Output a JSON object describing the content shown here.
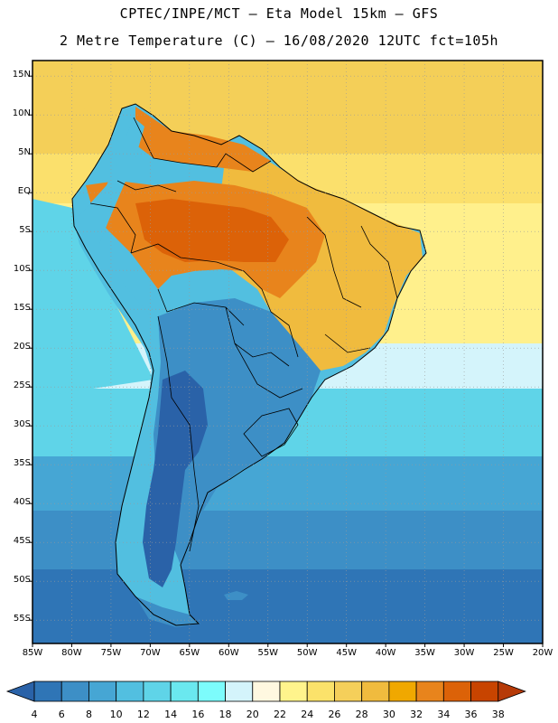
{
  "title": {
    "line1": "CPTEC/INPE/MCT –  Eta Model 15km – GFS",
    "line2": "2 Metre Temperature (C) – 16/08/2020 12UTC fct=105h"
  },
  "map": {
    "region": "South America",
    "lon_range": [
      -85,
      -20
    ],
    "lat_range": [
      -58,
      17
    ],
    "lat_labels": [
      {
        "lat": 15,
        "label": "15N"
      },
      {
        "lat": 10,
        "label": "10N"
      },
      {
        "lat": 5,
        "label": "5N"
      },
      {
        "lat": 0,
        "label": "EQ"
      },
      {
        "lat": -5,
        "label": "5S"
      },
      {
        "lat": -10,
        "label": "10S"
      },
      {
        "lat": -15,
        "label": "15S"
      },
      {
        "lat": -20,
        "label": "20S"
      },
      {
        "lat": -25,
        "label": "25S"
      },
      {
        "lat": -30,
        "label": "30S"
      },
      {
        "lat": -35,
        "label": "35S"
      },
      {
        "lat": -40,
        "label": "40S"
      },
      {
        "lat": -45,
        "label": "45S"
      },
      {
        "lat": -50,
        "label": "50S"
      },
      {
        "lat": -55,
        "label": "55S"
      }
    ],
    "lon_labels": [
      {
        "lon": -85,
        "label": "85W"
      },
      {
        "lon": -80,
        "label": "80W"
      },
      {
        "lon": -75,
        "label": "75W"
      },
      {
        "lon": -70,
        "label": "70W"
      },
      {
        "lon": -65,
        "label": "65W"
      },
      {
        "lon": -60,
        "label": "60W"
      },
      {
        "lon": -55,
        "label": "55W"
      },
      {
        "lon": -50,
        "label": "50W"
      },
      {
        "lon": -45,
        "label": "45W"
      },
      {
        "lon": -40,
        "label": "40W"
      },
      {
        "lon": -35,
        "label": "35W"
      },
      {
        "lon": -30,
        "label": "30W"
      },
      {
        "lon": -25,
        "label": "25W"
      },
      {
        "lon": -20,
        "label": "20W"
      }
    ]
  },
  "colorbar": {
    "levels": [
      "4",
      "6",
      "8",
      "10",
      "12",
      "14",
      "16",
      "18",
      "20",
      "22",
      "24",
      "26",
      "28",
      "30",
      "32",
      "34",
      "36",
      "38"
    ],
    "colors": [
      "#2a62a8",
      "#2f75b6",
      "#3d8fc6",
      "#46a6d4",
      "#52bfe0",
      "#5fd4e8",
      "#6ae8ef",
      "#7cfcfc",
      "#d4f4fb",
      "#fff8e0",
      "#fff48c",
      "#fbe26a",
      "#f5cf5a",
      "#f0bb3e",
      "#f0a800",
      "#e8841c",
      "#dc6208",
      "#c84400",
      "#b63a08"
    ]
  },
  "regions": {
    "ocean_north": "#f4cf58",
    "ocean_north_light": "#fbe06c",
    "ocean_near_eq": "#fff08c",
    "ocean_mid": "#d4f4fb",
    "ocean_sub": "#5fd4e8",
    "ocean_cool": "#46a6d4",
    "ocean_cold": "#3d8fc6",
    "ocean_south": "#2f75b6",
    "amazon_hot": "#e8841c",
    "amazon_core": "#dc6208",
    "brazil_warm": "#f0bb3e",
    "andes": "#52bfe0",
    "south_land": "#3d8fc6",
    "patagonia": "#2a62a8",
    "frame": "#000000"
  }
}
